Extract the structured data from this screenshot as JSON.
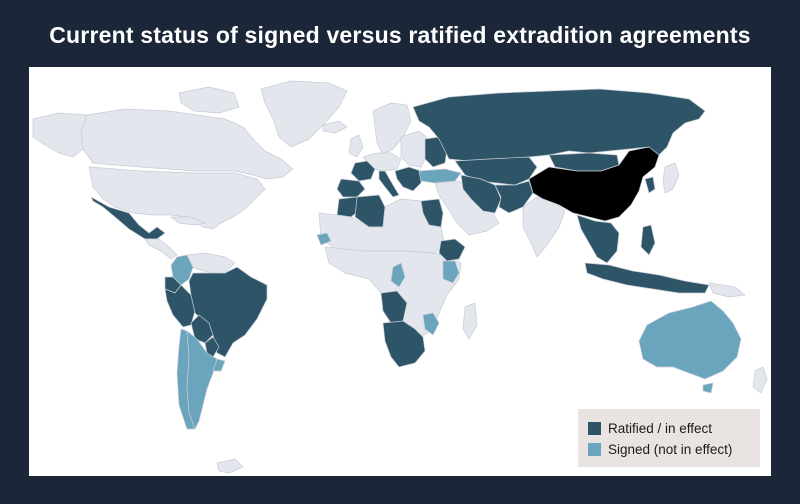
{
  "title": "Current status of signed versus ratified extradition agreements",
  "colors": {
    "frame": "#1b2638",
    "ratified": "#2e5467",
    "signed": "#6aa4bd",
    "china": "#000000",
    "other_land": "#e3e6ec",
    "ocean": "#ffffff",
    "legend_bg": "#e9e4e2"
  },
  "legend": {
    "ratified_label": "Ratified / in effect",
    "signed_label": "Signed (not in effect)"
  },
  "map": {
    "center_country": "China",
    "ratified": [
      "Mexico",
      "Peru",
      "Brazil",
      "Bolivia",
      "Paraguay",
      "Ecuador",
      "Spain",
      "Portugal",
      "France",
      "Italy",
      "Belgium",
      "Lithuania",
      "Romania",
      "Bulgaria",
      "Bosnia and Herzegovina",
      "Cyprus",
      "Greece",
      "Russia",
      "Belarus",
      "Ukraine",
      "Kazakhstan",
      "Uzbekistan",
      "Kyrgyzstan",
      "Tajikistan",
      "Turkmenistan",
      "Mongolia",
      "Iran",
      "Afghanistan",
      "Pakistan",
      "Algeria",
      "Tunisia",
      "Morocco",
      "Egypt",
      "Ethiopia",
      "Angola",
      "Namibia",
      "South Africa",
      "Zimbabwe",
      "Lesotho",
      "Thailand",
      "Laos",
      "Cambodia",
      "Vietnam",
      "Philippines",
      "Indonesia",
      "South Korea",
      "United Arab Emirates",
      "Azerbaijan",
      "Armenia"
    ],
    "signed": [
      "Australia",
      "Argentina",
      "Chile",
      "Uruguay",
      "Colombia",
      "Turkey",
      "Kenya",
      "Congo",
      "Senegal",
      "Mozambique",
      "Sudan"
    ]
  }
}
